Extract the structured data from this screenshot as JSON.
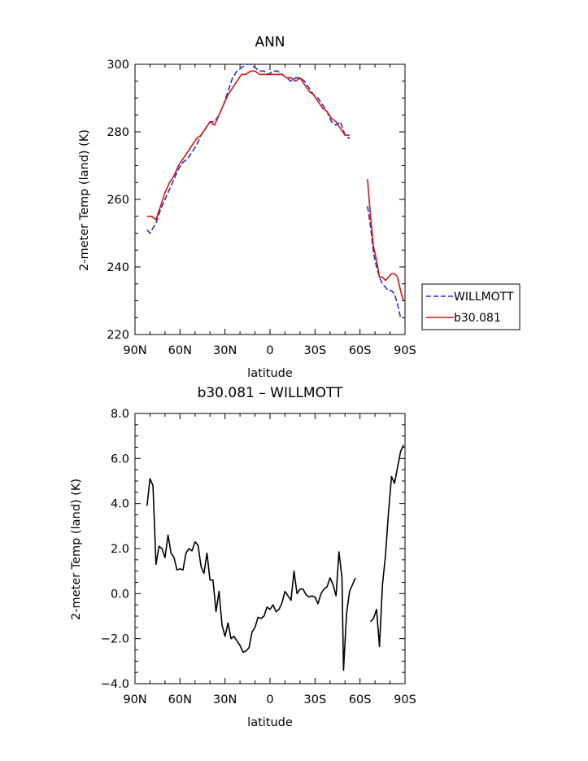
{
  "chart_data": [
    {
      "type": "line",
      "title": "ANN",
      "xlabel": "latitude",
      "ylabel": "2-meter Temp (land) (K)",
      "xlim": [
        90,
        -90
      ],
      "ylim": [
        220,
        300
      ],
      "x_tick_values": [
        90,
        60,
        30,
        0,
        -30,
        -60,
        -90
      ],
      "x_tick_labels": [
        "90N",
        "60N",
        "30N",
        "0",
        "30S",
        "60S",
        "90S"
      ],
      "y_tick_values": [
        220,
        240,
        260,
        280,
        300
      ],
      "y_tick_labels": [
        "220",
        "240",
        "260",
        "280",
        "300"
      ],
      "legend": "right",
      "series": [
        {
          "name": "WILLMOTT",
          "color": "#1f2fd6",
          "dash": true,
          "segments": [
            [
              [
                82,
                251
              ],
              [
                80,
                250
              ],
              [
                76,
                253
              ],
              [
                73,
                257
              ],
              [
                70,
                260
              ],
              [
                67,
                263
              ],
              [
                64,
                266
              ],
              [
                61,
                269
              ],
              [
                58,
                271
              ],
              [
                55,
                272
              ],
              [
                52,
                274
              ],
              [
                49,
                276
              ],
              [
                46,
                279
              ],
              [
                43,
                281
              ],
              [
                40,
                283
              ],
              [
                37,
                283
              ],
              [
                34,
                285
              ],
              [
                31,
                288
              ],
              [
                28,
                292
              ],
              [
                25,
                296
              ],
              [
                22,
                298
              ],
              [
                19,
                299
              ],
              [
                16,
                300
              ],
              [
                13,
                300
              ],
              [
                10,
                299
              ],
              [
                7,
                298
              ],
              [
                4,
                298
              ],
              [
                1,
                297
              ],
              [
                -2,
                298
              ],
              [
                -5,
                298
              ],
              [
                -8,
                297
              ],
              [
                -11,
                296
              ],
              [
                -14,
                295
              ],
              [
                -17,
                296
              ],
              [
                -20,
                296
              ],
              [
                -23,
                295
              ],
              [
                -26,
                293
              ],
              [
                -29,
                291
              ],
              [
                -32,
                290
              ],
              [
                -35,
                288
              ],
              [
                -38,
                286
              ],
              [
                -41,
                283
              ],
              [
                -44,
                282
              ],
              [
                -47,
                283
              ],
              [
                -50,
                279
              ],
              [
                -53,
                278
              ]
            ],
            [
              [
                -65,
                258
              ],
              [
                -67,
                252
              ],
              [
                -69,
                244
              ],
              [
                -71,
                240
              ],
              [
                -73,
                237
              ],
              [
                -75,
                235
              ],
              [
                -77,
                234
              ],
              [
                -79,
                233
              ],
              [
                -81,
                233
              ],
              [
                -83,
                232
              ],
              [
                -85,
                229
              ],
              [
                -87,
                225
              ]
            ]
          ]
        },
        {
          "name": "b30.081",
          "color": "#e01010",
          "dash": false,
          "segments": [
            [
              [
                82,
                255
              ],
              [
                79,
                255
              ],
              [
                76,
                254
              ],
              [
                73,
                258
              ],
              [
                70,
                262
              ],
              [
                67,
                265
              ],
              [
                64,
                267
              ],
              [
                61,
                270
              ],
              [
                58,
                272
              ],
              [
                55,
                274
              ],
              [
                52,
                276
              ],
              [
                49,
                278
              ],
              [
                46,
                279
              ],
              [
                43,
                281
              ],
              [
                40,
                283
              ],
              [
                37,
                282
              ],
              [
                34,
                285
              ],
              [
                31,
                288
              ],
              [
                28,
                291
              ],
              [
                25,
                293
              ],
              [
                22,
                295
              ],
              [
                19,
                297
              ],
              [
                16,
                297
              ],
              [
                13,
                298
              ],
              [
                10,
                298
              ],
              [
                7,
                297
              ],
              [
                4,
                297
              ],
              [
                1,
                297
              ],
              [
                -2,
                297
              ],
              [
                -5,
                297
              ],
              [
                -8,
                297
              ],
              [
                -11,
                296
              ],
              [
                -14,
                296
              ],
              [
                -17,
                295
              ],
              [
                -20,
                296
              ],
              [
                -23,
                294
              ],
              [
                -26,
                292
              ],
              [
                -29,
                291
              ],
              [
                -32,
                289
              ],
              [
                -35,
                287
              ],
              [
                -38,
                286
              ],
              [
                -41,
                284
              ],
              [
                -44,
                283
              ],
              [
                -47,
                281
              ],
              [
                -50,
                279
              ],
              [
                -53,
                279
              ]
            ],
            [
              [
                -65,
                266
              ],
              [
                -67,
                255
              ],
              [
                -69,
                246
              ],
              [
                -71,
                242
              ],
              [
                -73,
                237
              ],
              [
                -75,
                237
              ],
              [
                -77,
                236
              ],
              [
                -79,
                237
              ],
              [
                -81,
                238
              ],
              [
                -83,
                238
              ],
              [
                -85,
                237
              ],
              [
                -87,
                233
              ],
              [
                -89,
                230
              ]
            ]
          ]
        }
      ]
    },
    {
      "type": "line",
      "title": "b30.081 – WILLMOTT",
      "xlabel": "latitude",
      "ylabel": "2-meter Temp (land) (K)",
      "xlim": [
        90,
        -90
      ],
      "ylim": [
        -4,
        8
      ],
      "x_tick_values": [
        90,
        60,
        30,
        0,
        -30,
        -60,
        -90
      ],
      "x_tick_labels": [
        "90N",
        "60N",
        "30N",
        "0",
        "30S",
        "60S",
        "90S"
      ],
      "y_tick_values": [
        -4,
        -2,
        0,
        2,
        4,
        6,
        8
      ],
      "y_tick_labels": [
        "−4.0",
        "−2.0",
        "0.0",
        "2.0",
        "4.0",
        "6.0",
        "8.0"
      ],
      "series": [
        {
          "color": "#000000",
          "segments": [
            [
              [
                82,
                3.9
              ],
              [
                80,
                5.1
              ],
              [
                78,
                4.8
              ],
              [
                76,
                1.3
              ],
              [
                74,
                2.1
              ],
              [
                72,
                2.0
              ],
              [
                70,
                1.6
              ],
              [
                68,
                2.6
              ],
              [
                66,
                1.8
              ],
              [
                64,
                1.6
              ],
              [
                62,
                1.05
              ],
              [
                60,
                1.1
              ],
              [
                58,
                1.05
              ],
              [
                56,
                1.8
              ],
              [
                54,
                2.0
              ],
              [
                52,
                1.9
              ],
              [
                50,
                2.3
              ],
              [
                48,
                2.15
              ],
              [
                46,
                1.2
              ],
              [
                44,
                0.9
              ],
              [
                42,
                1.8
              ],
              [
                40,
                0.6
              ],
              [
                38,
                0.6
              ],
              [
                36,
                -0.8
              ],
              [
                34,
                0.1
              ],
              [
                32,
                -1.4
              ],
              [
                30,
                -1.9
              ],
              [
                28,
                -1.3
              ],
              [
                26,
                -2.0
              ],
              [
                24,
                -1.9
              ],
              [
                22,
                -2.1
              ],
              [
                20,
                -2.3
              ],
              [
                18,
                -2.6
              ],
              [
                16,
                -2.55
              ],
              [
                14,
                -2.4
              ],
              [
                12,
                -1.7
              ],
              [
                10,
                -1.5
              ],
              [
                8,
                -1.05
              ],
              [
                6,
                -1.1
              ],
              [
                4,
                -1.0
              ],
              [
                2,
                -0.6
              ],
              [
                0,
                -0.7
              ],
              [
                -2,
                -0.5
              ],
              [
                -4,
                -0.8
              ],
              [
                -6,
                -0.7
              ],
              [
                -8,
                -0.4
              ],
              [
                -10,
                0.1
              ],
              [
                -12,
                -0.1
              ],
              [
                -14,
                -0.3
              ],
              [
                -16,
                1.0
              ],
              [
                -18,
                0.0
              ],
              [
                -20,
                0.2
              ],
              [
                -22,
                0.2
              ],
              [
                -24,
                -0.05
              ],
              [
                -26,
                -0.15
              ],
              [
                -28,
                -0.1
              ],
              [
                -30,
                -0.15
              ],
              [
                -32,
                -0.45
              ],
              [
                -34,
                0.0
              ],
              [
                -36,
                0.2
              ],
              [
                -38,
                0.3
              ],
              [
                -40,
                0.7
              ],
              [
                -42,
                0.4
              ],
              [
                -44,
                -0.1
              ],
              [
                -46,
                1.85
              ],
              [
                -48,
                0.7
              ],
              [
                -49,
                -3.4
              ],
              [
                -51,
                -0.9
              ],
              [
                -53,
                0.1
              ],
              [
                -55,
                0.4
              ],
              [
                -57,
                0.7
              ]
            ],
            [
              [
                -67,
                -1.25
              ],
              [
                -69,
                -1.1
              ],
              [
                -71,
                -0.7
              ],
              [
                -73,
                -2.35
              ],
              [
                -75,
                0.4
              ],
              [
                -77,
                1.7
              ],
              [
                -79,
                3.6
              ],
              [
                -81,
                5.2
              ],
              [
                -83,
                4.9
              ],
              [
                -85,
                5.6
              ],
              [
                -87,
                6.3
              ],
              [
                -89,
                6.6
              ]
            ]
          ]
        }
      ]
    }
  ]
}
